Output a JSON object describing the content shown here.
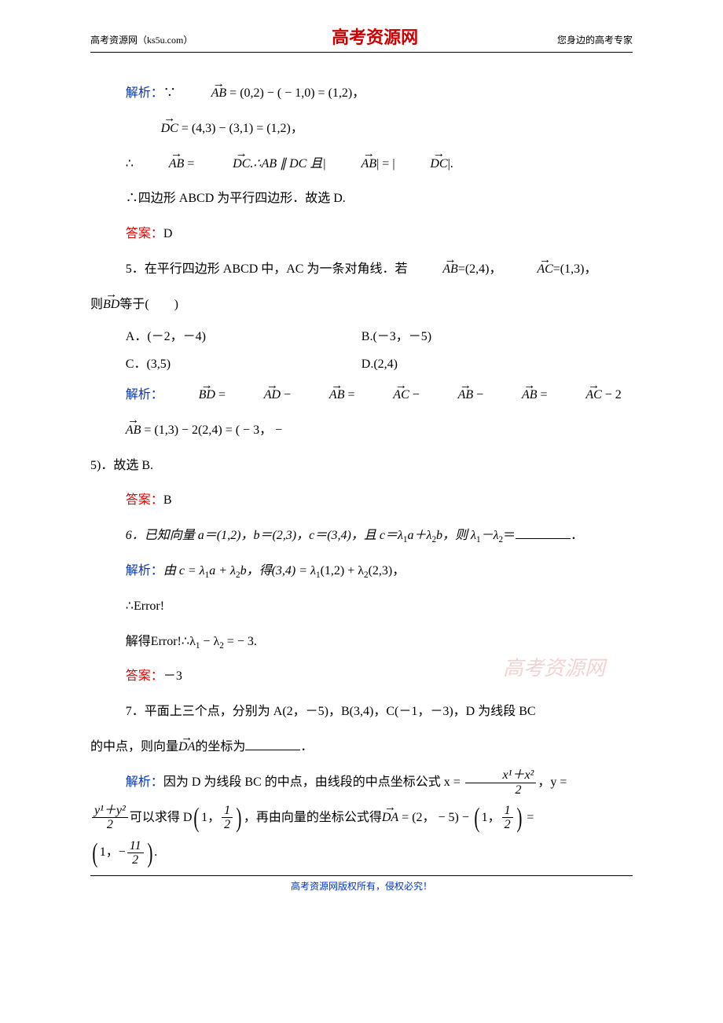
{
  "header": {
    "left": "高考资源网（ks5u.com）",
    "center": "高考资源网",
    "right": "您身边的高考专家"
  },
  "q4": {
    "jiexi_label": "解析：",
    "line1_pre": "∵",
    "line1_vec": "AB",
    "line1_rest": " = (0,2) − ( − 1,0) = (1,2)，",
    "line2_vec": "DC",
    "line2_rest": " = (4,3) − (3,1) = (1,2)，",
    "line3_pre": "∴",
    "line3_v1": "AB",
    "line3_mid1": " = ",
    "line3_v2": "DC",
    "line3_mid2": ".∴AB ∥ DC 且|",
    "line3_v3": "AB",
    "line3_mid3": "| = |",
    "line3_v4": "DC",
    "line3_end": "|.",
    "line4": "∴四边形 ABCD 为平行四边形．故选 D.",
    "ans_label": "答案：",
    "ans": "D"
  },
  "q5": {
    "stem_a": "5．在平行四边形 ABCD 中，AC 为一条对角线．若",
    "vec_ab": "AB",
    "stem_b": "=(2,4)，",
    "vec_ac": "AC",
    "stem_c": "=(1,3)，",
    "stem2_a": "则",
    "vec_bd": "BD",
    "stem2_b": "等于(　　)",
    "optA": "A．(－2，－4)",
    "optB": "B.(－3，－5)",
    "optC": "C．(3,5)",
    "optD": "D.(2,4)",
    "jiexi_label": "解析：",
    "jx_v1": "BD",
    "jx_t1": " = ",
    "jx_v2": "AD",
    "jx_t2": " − ",
    "jx_v3": "AB",
    "jx_t3": " = ",
    "jx_v4": "AC",
    "jx_t4": " − ",
    "jx_v5": "AB",
    "jx_t5": " − ",
    "jx_v6": "AB",
    "jx_t6": " = ",
    "jx_v7": "AC",
    "jx_t7": " − 2",
    "jx_v8": "AB",
    "jx_t8": " = (1,3) − 2(2,4) = ( − 3，  −",
    "jx_tail": "5)．故选 B.",
    "ans_label": "答案：",
    "ans": "B"
  },
  "q6": {
    "stem_a": "6．已知向量 a＝(1,2)，b＝(2,3)，c＝(3,4)，且 c＝λ",
    "sub1": "1",
    "stem_b": "a＋λ",
    "sub2": "2",
    "stem_c": "b，则 λ",
    "sub3": "1",
    "stem_d": "－λ",
    "sub4": "2",
    "stem_e": "＝",
    "stem_f": "．",
    "jiexi_label": "解析：",
    "jx_a": "由 c = λ",
    "jx_b": "a + λ",
    "jx_c": "b，得(3,4) = λ",
    "jx_d": "(1,2) + λ",
    "jx_e": "(2,3)，",
    "err1": "∴Error!",
    "err2_a": "解得Error!∴λ",
    "err2_b": " − λ",
    "err2_c": " = − 3.",
    "ans_label": "答案：",
    "ans": "－3"
  },
  "q7": {
    "stem1": "7．平面上三个点，分别为 A(2，－5)，B(3,4)，C(－1，－3)，D 为线段 BC",
    "stem2_a": "的中点，则向量",
    "vec_da": "DA",
    "stem2_b": "的坐标为",
    "stem2_c": "．",
    "jiexi_label": "解析：",
    "jx1": "因为 D 为线段 BC 的中点，由线段的中点坐标公式 x = ",
    "fr1_num": "x¹＋x²",
    "fr1_den": "2",
    "jx1_tail": "，y =",
    "fr2_num": "y¹＋y²",
    "fr2_den": "2",
    "jx2_a": "可以求得 D",
    "dpair_a": "1",
    "dpair_comma": "，",
    "fr3_num": "1",
    "fr3_den": "2",
    "jx2_b": "，再由向量的坐标公式得",
    "jx2_c": " = (2， − 5) − ",
    "fr4_num": "1",
    "fr4_den": "2",
    "jx2_d": " =",
    "fr5_num": "11",
    "fr5_den": "2",
    "last_a": "1",
    "last_comma": "，−",
    "last_period": "."
  },
  "watermark": "高考资源网",
  "footer": "高考资源网版权所有，侵权必究！"
}
